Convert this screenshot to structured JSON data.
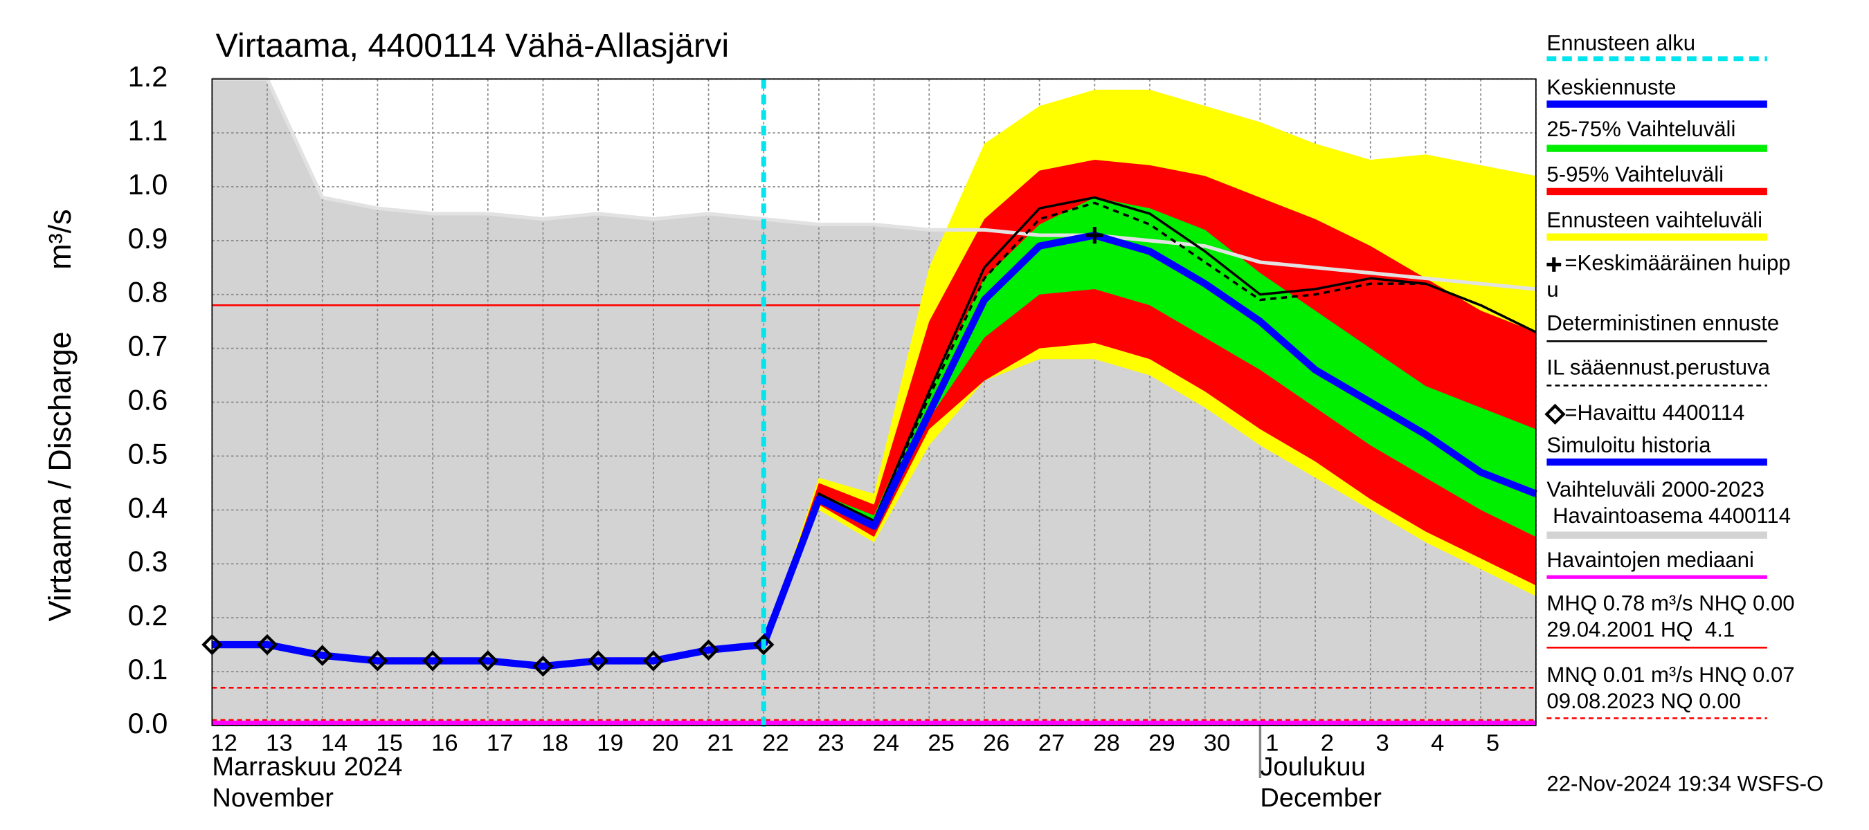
{
  "chart_data": {
    "type": "forecast",
    "title": "Virtaama, 4400114 Vähä-Allasjärvi",
    "y_label": "Virtaama / Discharge",
    "y_unit": "m³/s",
    "categories": [
      "12",
      "13",
      "14",
      "15",
      "16",
      "17",
      "18",
      "19",
      "20",
      "21",
      "22",
      "23",
      "24",
      "25",
      "26",
      "27",
      "28",
      "29",
      "30",
      "1",
      "2",
      "3",
      "4",
      "5",
      null
    ],
    "months": [
      {
        "at": 0,
        "lines": [
          "Marraskuu 2024",
          "November"
        ]
      },
      {
        "at": 19,
        "lines": [
          "Joulukuu",
          "December"
        ]
      }
    ],
    "ylim": [
      0,
      1.2
    ],
    "yticks": [
      {
        "value": 0,
        "label": "0.0"
      },
      0.1,
      0.2,
      0.3,
      0.4,
      0.5,
      0.6,
      0.7,
      0.8,
      0.9,
      {
        "value": 1,
        "label": "1.0"
      },
      1.1,
      1.2
    ],
    "grid": true,
    "forecast_start": 10,
    "series": [
      {
        "kind": "band",
        "color": "#d3d3d3",
        "lower": [
          0,
          0,
          0,
          0,
          0,
          0,
          0,
          0,
          0,
          0,
          0,
          0,
          0,
          0,
          0,
          0,
          0,
          0,
          0,
          0,
          0,
          0,
          0,
          0,
          0
        ],
        "upper": [
          1.2,
          1.2,
          0.98,
          0.96,
          0.95,
          0.95,
          0.94,
          0.95,
          0.94,
          0.95,
          0.94,
          0.93,
          0.93,
          0.92,
          0.92,
          0.91,
          0.91,
          0.9,
          0.89,
          0.86,
          0.85,
          0.84,
          0.83,
          0.82,
          0.81
        ]
      },
      {
        "kind": "band",
        "color": "#ffff00",
        "lower": [
          null,
          null,
          null,
          null,
          null,
          null,
          null,
          null,
          null,
          null,
          0.15,
          0.4,
          0.34,
          0.52,
          0.64,
          0.68,
          0.68,
          0.65,
          0.59,
          0.52,
          0.46,
          0.4,
          0.34,
          0.29,
          0.24
        ],
        "upper": [
          null,
          null,
          null,
          null,
          null,
          null,
          null,
          null,
          null,
          null,
          0.15,
          0.46,
          0.43,
          0.85,
          1.08,
          1.15,
          1.18,
          1.18,
          1.15,
          1.12,
          1.08,
          1.05,
          1.06,
          1.04,
          1.02
        ]
      },
      {
        "kind": "band",
        "color": "#ff0000",
        "lower": [
          null,
          null,
          null,
          null,
          null,
          null,
          null,
          null,
          null,
          null,
          0.15,
          0.41,
          0.35,
          0.55,
          0.64,
          0.7,
          0.71,
          0.68,
          0.62,
          0.55,
          0.49,
          0.42,
          0.36,
          0.31,
          0.26
        ],
        "upper": [
          null,
          null,
          null,
          null,
          null,
          null,
          null,
          null,
          null,
          null,
          0.15,
          0.45,
          0.41,
          0.75,
          0.94,
          1.03,
          1.05,
          1.04,
          1.02,
          0.98,
          0.94,
          0.89,
          0.83,
          0.77,
          0.73
        ]
      },
      {
        "kind": "band",
        "color": "#00ee00",
        "lower": [
          null,
          null,
          null,
          null,
          null,
          null,
          null,
          null,
          null,
          null,
          0.15,
          0.42,
          0.37,
          0.57,
          0.72,
          0.8,
          0.81,
          0.78,
          0.72,
          0.66,
          0.59,
          0.52,
          0.46,
          0.4,
          0.35
        ],
        "upper": [
          null,
          null,
          null,
          null,
          null,
          null,
          null,
          null,
          null,
          null,
          0.15,
          0.43,
          0.39,
          0.62,
          0.83,
          0.93,
          0.98,
          0.96,
          0.92,
          0.84,
          0.77,
          0.7,
          0.63,
          0.59,
          0.55
        ]
      },
      {
        "kind": "line",
        "style": "dashed",
        "color": "#000000",
        "values": [
          null,
          null,
          null,
          null,
          null,
          null,
          null,
          null,
          null,
          null,
          0.15,
          0.43,
          0.38,
          0.61,
          0.83,
          0.94,
          0.97,
          0.93,
          0.86,
          0.79,
          0.8,
          0.82,
          0.82,
          0.78,
          0.73
        ]
      },
      {
        "kind": "line",
        "style": "thin",
        "color": "#000000",
        "values": [
          null,
          null,
          null,
          null,
          null,
          null,
          null,
          null,
          null,
          null,
          0.15,
          0.43,
          0.38,
          0.62,
          0.85,
          0.96,
          0.98,
          0.95,
          0.88,
          0.8,
          0.81,
          0.83,
          0.82,
          0.78,
          0.73
        ]
      },
      {
        "kind": "line",
        "style": "thick",
        "color": "#0000ff",
        "values": [
          null,
          null,
          null,
          null,
          null,
          null,
          null,
          null,
          null,
          null,
          0.15,
          0.42,
          0.37,
          0.58,
          0.79,
          0.89,
          0.91,
          0.88,
          0.82,
          0.75,
          0.66,
          0.6,
          0.54,
          0.47,
          0.43
        ]
      },
      {
        "kind": "line",
        "style": "thick",
        "color": "#0000ff",
        "values": [
          0.15,
          0.15,
          0.13,
          0.12,
          0.12,
          0.12,
          0.11,
          0.12,
          0.12,
          0.14,
          0.15,
          null,
          null,
          null,
          null,
          null,
          null,
          null,
          null,
          null,
          null,
          null,
          null,
          null,
          null
        ]
      },
      {
        "kind": "diamonds",
        "color": "#000000",
        "values": [
          0.15,
          0.15,
          0.13,
          0.12,
          0.12,
          0.12,
          0.11,
          0.12,
          0.12,
          0.14,
          0.15,
          null,
          null,
          null,
          null,
          null,
          null,
          null,
          null,
          null,
          null,
          null,
          null,
          null,
          null
        ]
      }
    ],
    "peak": {
      "at": 16,
      "value": 0.91
    },
    "reference_lines": [
      {
        "value": 0.78,
        "color": "#ff0000",
        "style": "solid"
      },
      {
        "value": 0.07,
        "color": "#ff0000",
        "style": "dashed"
      },
      {
        "value": 0.01,
        "color": "#ff0000",
        "style": "dashed"
      },
      {
        "value": 0,
        "color": "#ff00ff",
        "style": "thick"
      }
    ],
    "legend": [
      {
        "lines": [
          "Ennusteen alku"
        ],
        "color": "#00e5ee",
        "style": "dashed"
      },
      {
        "lines": [
          "Keskiennuste"
        ],
        "color": "#0000ff",
        "style": "thick"
      },
      {
        "lines": [
          "25-75% Vaihteluväli"
        ],
        "color": "#00ee00",
        "style": "thick"
      },
      {
        "lines": [
          "5-95% Vaihteluväli"
        ],
        "color": "#ff0000",
        "style": "thick"
      },
      {
        "lines": [
          "Ennusteen vaihteluväli"
        ],
        "color": "#ffff00",
        "style": "thick"
      },
      {
        "lines": [
          "=Keskimääräinen huipp",
          "u"
        ],
        "color": "#000000",
        "style": "plus"
      },
      {
        "lines": [
          "Deterministinen ennuste"
        ],
        "color": "#000000",
        "style": "thin"
      },
      {
        "lines": [
          "IL sääennust.perustuva"
        ],
        "color": "#000000",
        "style": "thin-dashed"
      },
      {
        "lines": [
          "=Havaittu 4400114"
        ],
        "color": "#000000",
        "style": "diamond"
      },
      {
        "lines": [
          "Simuloitu historia"
        ],
        "color": "#0000ff",
        "style": "thick"
      },
      {
        "lines": [
          "Vaihteluväli 2000-2023",
          " Havaintoasema 4400114"
        ],
        "color": "#d3d3d3",
        "style": "thick"
      },
      {
        "lines": [
          "Havaintojen mediaani"
        ],
        "color": "#ff00ff",
        "style": "medium"
      },
      {
        "lines": [
          "MHQ 0.78 m³/s NHQ 0.00",
          "29.04.2001 HQ  4.1"
        ],
        "color": "#ff0000",
        "style": "thin"
      },
      {
        "lines": [
          "MNQ 0.01 m³/s HNQ 0.07",
          "09.08.2023 NQ 0.00"
        ],
        "color": "#ff0000",
        "style": "thin-dashed"
      }
    ],
    "footer": "22-Nov-2024 19:34 WSFS-O"
  }
}
